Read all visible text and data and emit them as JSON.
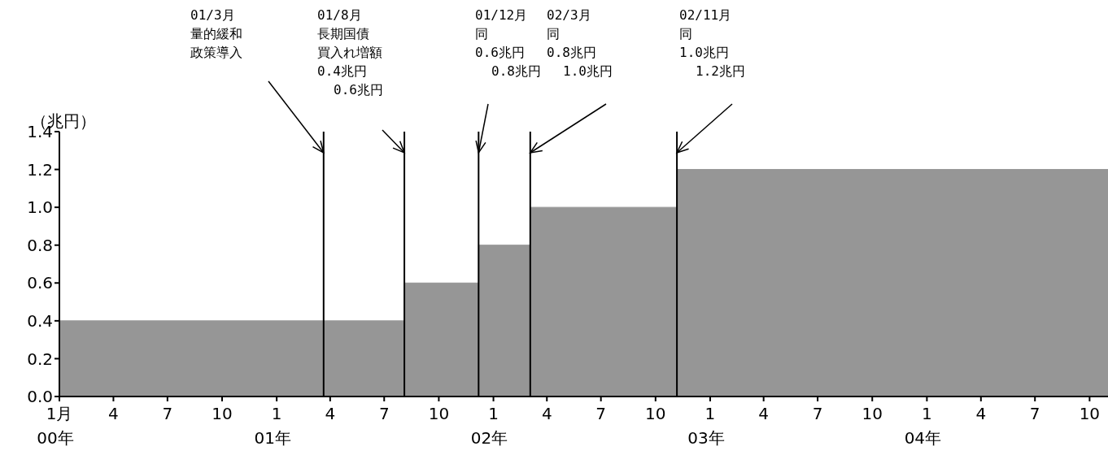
{
  "chart_data": {
    "type": "area",
    "ylabel": "（兆円）",
    "series": [
      {
        "color": "#969696",
        "x": [
          "2000-01",
          "2001-08-04",
          "2001-08-04",
          "2001-12-07",
          "2001-12-07",
          "2002-03-04",
          "2002-03-04",
          "2002-11-06",
          "2002-11-06",
          "2004-11"
        ],
        "values": [
          0.4,
          0.4,
          0.6,
          0.6,
          0.8,
          0.8,
          1.0,
          1.0,
          1.2,
          1.2
        ]
      }
    ],
    "xlim": [
      "2000-01",
      "2004-11"
    ],
    "xticks": [
      {
        "value": "2000-01",
        "label": "1月\n00年"
      },
      {
        "value": "2000-04",
        "label": "4"
      },
      {
        "value": "2000-07",
        "label": "7"
      },
      {
        "value": "2000-10",
        "label": "10"
      },
      {
        "value": "2001-01",
        "label": "1\n01年"
      },
      {
        "value": "2001-04",
        "label": "4"
      },
      {
        "value": "2001-07",
        "label": "7"
      },
      {
        "value": "2001-10",
        "label": "10"
      },
      {
        "value": "2002-01",
        "label": "1\n02年"
      },
      {
        "value": "2002-04",
        "label": "4"
      },
      {
        "value": "2002-07",
        "label": "7"
      },
      {
        "value": "2002-10",
        "label": "10"
      },
      {
        "value": "2003-01",
        "label": "1\n03年"
      },
      {
        "value": "2003-04",
        "label": "4"
      },
      {
        "value": "2003-07",
        "label": "7"
      },
      {
        "value": "2003-10",
        "label": "10"
      },
      {
        "value": "2004-01",
        "label": "1\n04年"
      },
      {
        "value": "2004-04",
        "label": "4"
      },
      {
        "value": "2004-07",
        "label": "7"
      },
      {
        "value": "2004-10",
        "label": "10"
      }
    ],
    "ylim": [
      0,
      1.4
    ],
    "yticks": [
      {
        "value": 0,
        "label": "0.0"
      },
      {
        "value": 0.2,
        "label": "0.2"
      },
      {
        "value": 0.4,
        "label": "0.4"
      },
      {
        "value": 0.6,
        "label": "0.6"
      },
      {
        "value": 0.8,
        "label": "0.8"
      },
      {
        "value": 1,
        "label": "1.0"
      },
      {
        "value": 1.2,
        "label": "1.2"
      },
      {
        "value": 1.4,
        "label": "1.4"
      }
    ],
    "ref_lines": [
      {
        "axis": "x",
        "value": "2001-03-21",
        "label": null,
        "color": "#000000"
      },
      {
        "axis": "x",
        "value": "2001-08-04",
        "label": null,
        "color": "#000000"
      },
      {
        "axis": "x",
        "value": "2001-12-07",
        "label": null,
        "color": "#000000"
      },
      {
        "axis": "x",
        "value": "2002-03-04",
        "label": null,
        "color": "#000000"
      },
      {
        "axis": "x",
        "value": "2002-11-06",
        "label": null,
        "color": "#000000"
      }
    ],
    "annotations": [
      "01/3月量的緩和政策導入",
      "01/8月長期国債買入れ増額0.4兆円 0.6兆円",
      "01/12月同0.6兆円 0.8兆円",
      "02/3月同0.8兆円 1.0兆円",
      "02/11月同1.0兆円 1.2兆円"
    ]
  }
}
